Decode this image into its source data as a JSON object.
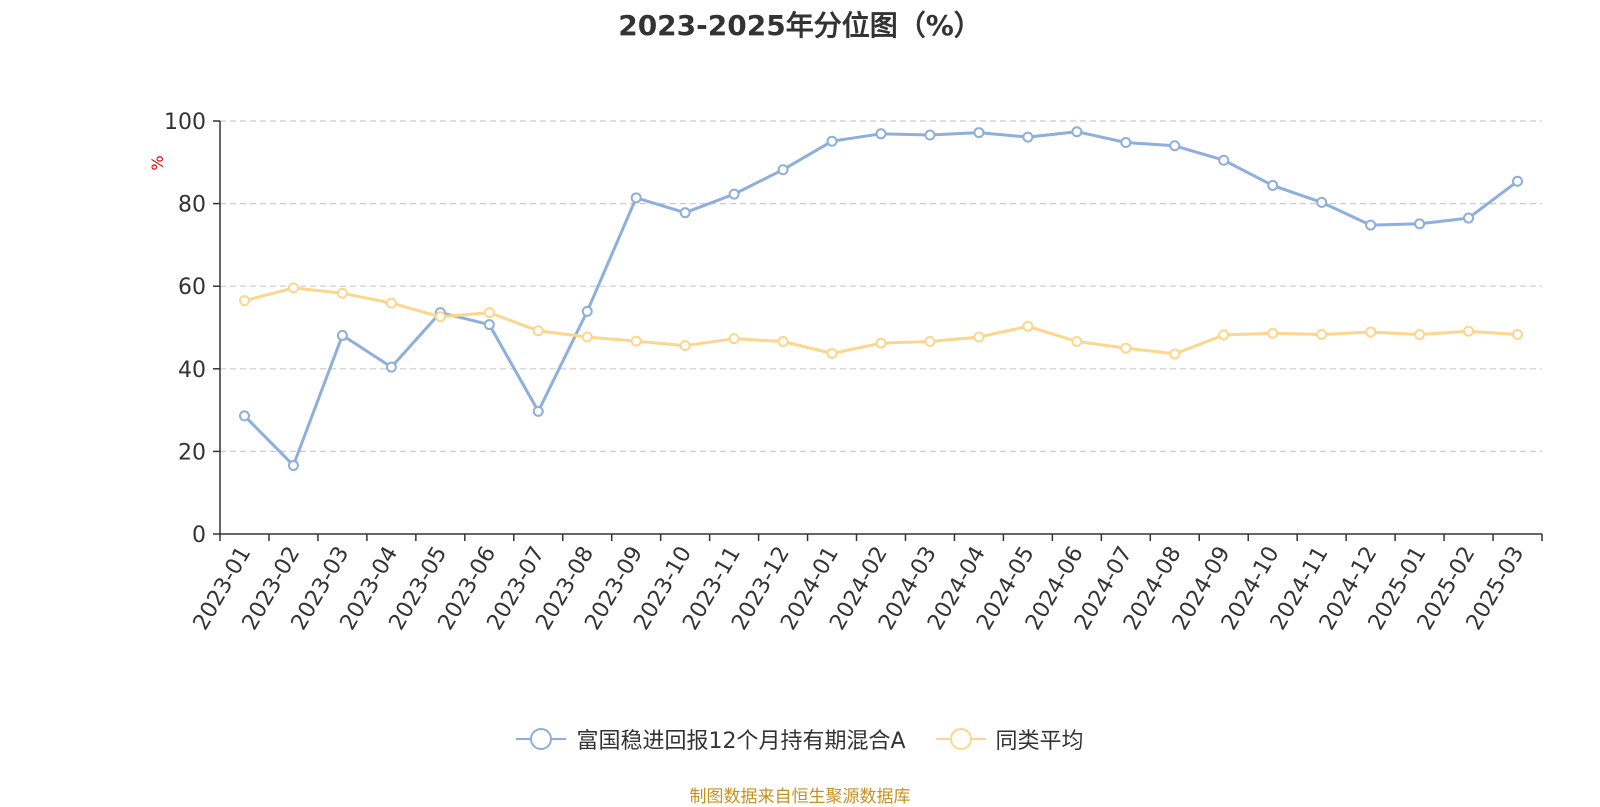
{
  "chart_data": {
    "type": "line",
    "title": "2023-2025年分位图（%）",
    "ylabel": "%",
    "ylim": [
      0,
      100
    ],
    "yticks": [
      0,
      20,
      40,
      60,
      80,
      100
    ],
    "grid": true,
    "legend_position": "bottom",
    "categories": [
      "2023-01",
      "2023-02",
      "2023-03",
      "2023-04",
      "2023-05",
      "2023-06",
      "2023-07",
      "2023-08",
      "2023-09",
      "2023-10",
      "2023-11",
      "2023-12",
      "2024-01",
      "2024-02",
      "2024-03",
      "2024-04",
      "2024-05",
      "2024-06",
      "2024-07",
      "2024-08",
      "2024-09",
      "2024-10",
      "2024-11",
      "2024-12",
      "2025-01",
      "2025-02",
      "2025-03"
    ],
    "series": [
      {
        "name": "富国稳进回报12个月持有期混合A",
        "color": "#8eaedb",
        "values": [
          28.6,
          16.6,
          48.1,
          40.4,
          53.6,
          50.7,
          29.7,
          53.9,
          81.4,
          77.8,
          82.3,
          88.2,
          95.1,
          96.9,
          96.6,
          97.2,
          96.1,
          97.4,
          94.8,
          94.0,
          90.5,
          84.4,
          80.3,
          74.8,
          75.1,
          76.5,
          85.4
        ]
      },
      {
        "name": "同类平均",
        "color": "#fdd68e",
        "values": [
          56.5,
          59.6,
          58.3,
          55.9,
          52.6,
          53.6,
          49.2,
          47.7,
          46.7,
          45.6,
          47.3,
          46.6,
          43.7,
          46.2,
          46.6,
          47.7,
          50.3,
          46.6,
          45.0,
          43.6,
          48.2,
          48.6,
          48.3,
          48.9,
          48.3,
          49.1,
          48.3
        ]
      }
    ]
  },
  "source": "制图数据来自恒生聚源数据库"
}
